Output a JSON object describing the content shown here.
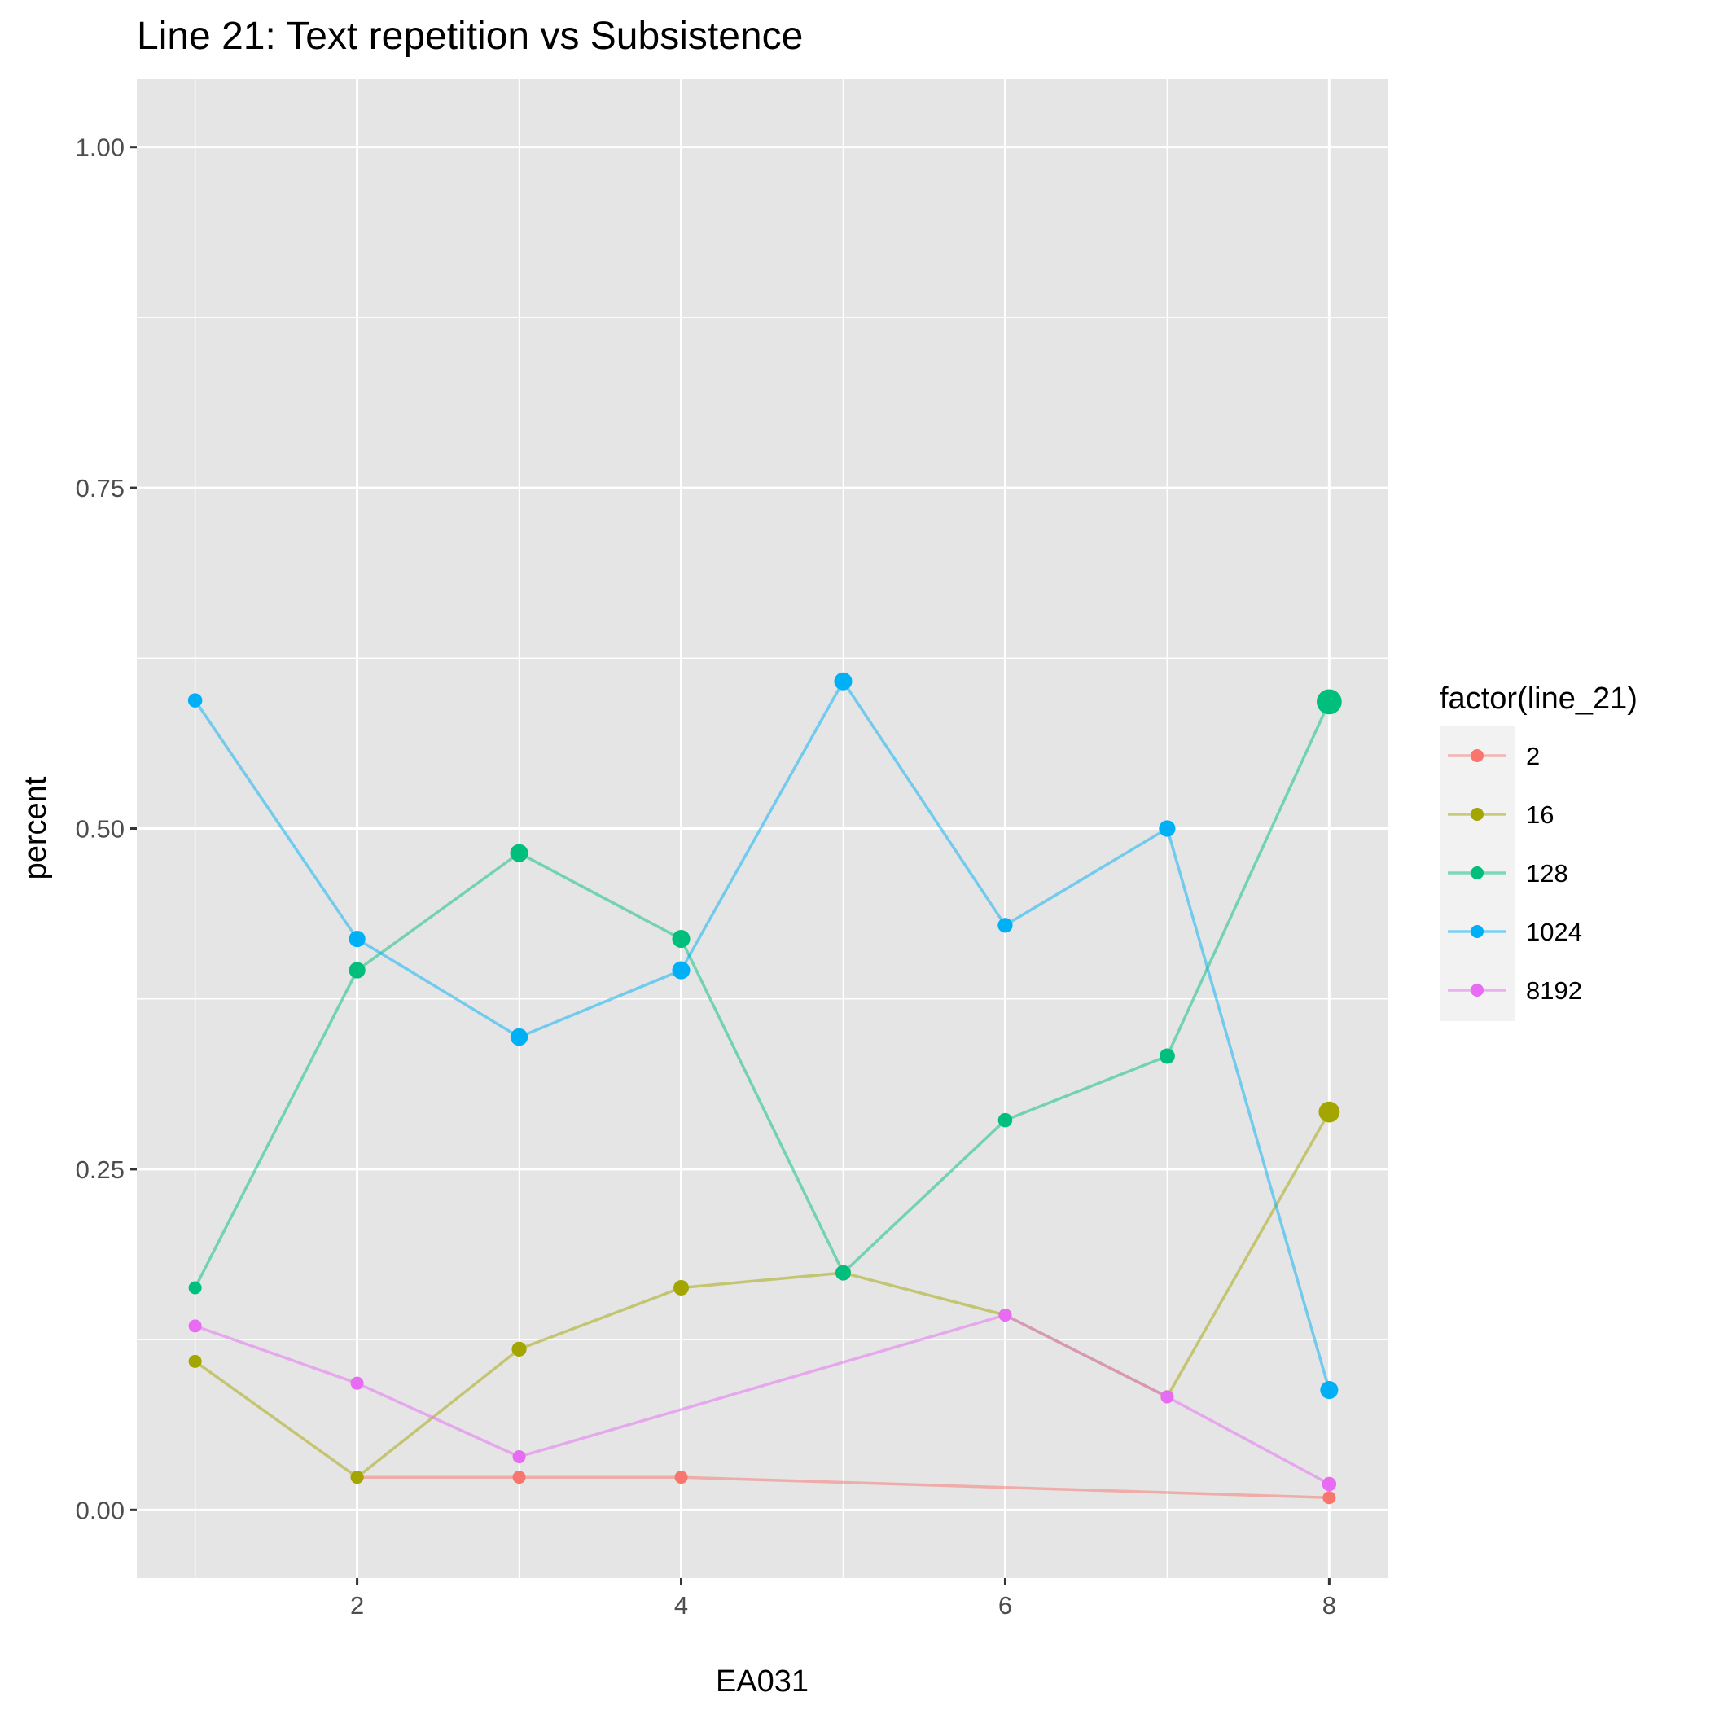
{
  "chart_data": {
    "type": "line",
    "title": "Line 21: Text repetition vs Subsistence",
    "xlabel": "EA031",
    "ylabel": "percent",
    "xlim": [
      0.64,
      8.36
    ],
    "ylim": [
      -0.05,
      1.05
    ],
    "x_ticks": [
      2,
      4,
      6,
      8
    ],
    "x_tick_labels": [
      "2",
      "4",
      "6",
      "8"
    ],
    "y_ticks": [
      0,
      0.25,
      0.5,
      0.75,
      1.0
    ],
    "y_tick_labels": [
      "0.00",
      "0.25",
      "0.50",
      "0.75",
      "1.00"
    ],
    "grid": true,
    "legend": {
      "title": "factor(line_21)",
      "position": "right"
    },
    "series": [
      {
        "name": "2",
        "color": "#F8766D",
        "points": [
          {
            "x": 2,
            "y": 0.024,
            "size": 1
          },
          {
            "x": 3,
            "y": 0.024,
            "size": 1
          },
          {
            "x": 4,
            "y": 0.024,
            "size": 1
          },
          {
            "x": 8,
            "y": 0.009,
            "size": 1
          }
        ]
      },
      {
        "name": "16",
        "color": "#A3A500",
        "points": [
          {
            "x": 1,
            "y": 0.109,
            "size": 1
          },
          {
            "x": 2,
            "y": 0.024,
            "size": 1
          },
          {
            "x": 3,
            "y": 0.118,
            "size": 1.3
          },
          {
            "x": 4,
            "y": 0.163,
            "size": 1.4
          },
          {
            "x": 5,
            "y": 0.174,
            "size": 1.4
          },
          {
            "x": 6,
            "y": 0.143,
            "size": 1
          },
          {
            "x": 7,
            "y": 0.083,
            "size": 1
          },
          {
            "x": 8,
            "y": 0.292,
            "size": 2.6
          }
        ]
      },
      {
        "name": "128",
        "color": "#00BF7D",
        "points": [
          {
            "x": 1,
            "y": 0.163,
            "size": 1
          },
          {
            "x": 2,
            "y": 0.396,
            "size": 1.6
          },
          {
            "x": 3,
            "y": 0.482,
            "size": 1.9
          },
          {
            "x": 4,
            "y": 0.419,
            "size": 1.9
          },
          {
            "x": 5,
            "y": 0.174,
            "size": 1.4
          },
          {
            "x": 6,
            "y": 0.286,
            "size": 1.2
          },
          {
            "x": 7,
            "y": 0.333,
            "size": 1.4
          },
          {
            "x": 8,
            "y": 0.593,
            "size": 3.7
          }
        ]
      },
      {
        "name": "1024",
        "color": "#00B0F6",
        "points": [
          {
            "x": 1,
            "y": 0.594,
            "size": 1.2
          },
          {
            "x": 2,
            "y": 0.419,
            "size": 1.6
          },
          {
            "x": 3,
            "y": 0.347,
            "size": 1.8
          },
          {
            "x": 4,
            "y": 0.396,
            "size": 1.9
          },
          {
            "x": 5,
            "y": 0.608,
            "size": 1.9
          },
          {
            "x": 6,
            "y": 0.429,
            "size": 1.3
          },
          {
            "x": 7,
            "y": 0.5,
            "size": 1.6
          },
          {
            "x": 8,
            "y": 0.088,
            "size": 1.9
          }
        ]
      },
      {
        "name": "8192",
        "color": "#E76BF3",
        "points": [
          {
            "x": 1,
            "y": 0.135,
            "size": 1
          },
          {
            "x": 2,
            "y": 0.093,
            "size": 1
          },
          {
            "x": 3,
            "y": 0.039,
            "size": 1
          },
          {
            "x": 6,
            "y": 0.143,
            "size": 1
          },
          {
            "x": 7,
            "y": 0.083,
            "size": 1
          },
          {
            "x": 8,
            "y": 0.019,
            "size": 1.2
          }
        ]
      }
    ]
  }
}
